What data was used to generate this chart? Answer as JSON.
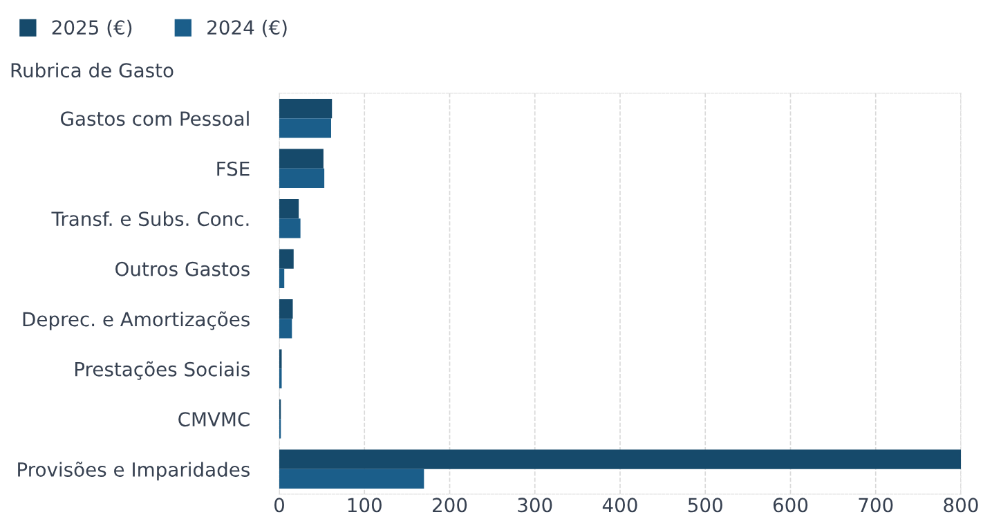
{
  "chart_data": {
    "type": "bar",
    "orientation": "horizontal",
    "ylabel": "Rubrica de Gasto",
    "categories": [
      "Gastos com Pessoal",
      "FSE",
      "Transf. e Subs. Conc.",
      "Outros Gastos",
      "Deprec. e Amortizações",
      "Prestações Sociais",
      "CMVMC",
      "Provisões e Imparidades"
    ],
    "series": [
      {
        "name": "2025 (€)",
        "color": "#164a6b",
        "values": [
          61,
          51,
          22,
          16,
          15,
          2,
          1,
          800
        ]
      },
      {
        "name": "2024 (€)",
        "color": "#1b5e8a",
        "values": [
          60,
          52,
          24,
          5,
          14,
          2,
          1,
          169
        ]
      }
    ],
    "xlim": [
      0,
      800
    ],
    "xticks": [
      0,
      100,
      200,
      300,
      400,
      500,
      600,
      700,
      800
    ],
    "grid": "x",
    "legend": "top left"
  }
}
